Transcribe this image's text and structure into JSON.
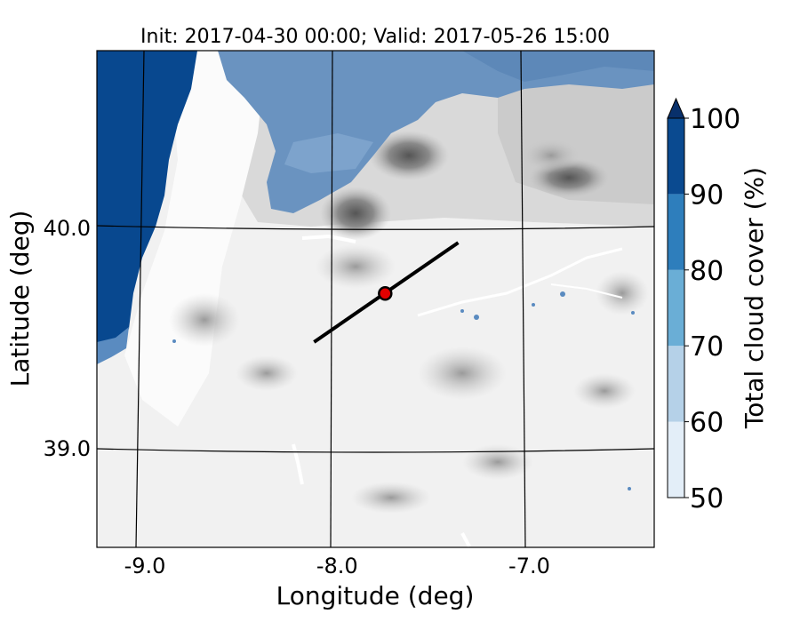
{
  "chart_data": {
    "type": "heatmap",
    "title": "Init: 2017-04-30 00:00; Valid: 2017-05-26 15:00",
    "xlabel": "Longitude (deg)",
    "ylabel": "Latitude (deg)",
    "xlim": [
      -9.25,
      -6.35
    ],
    "ylim": [
      38.55,
      40.8
    ],
    "x_ticks": [
      {
        "value": -9.0,
        "label": "-9.0"
      },
      {
        "value": -8.0,
        "label": "-8.0"
      },
      {
        "value": -7.0,
        "label": "-7.0"
      }
    ],
    "y_ticks": [
      {
        "value": 40.0,
        "label": "40.0"
      },
      {
        "value": 39.0,
        "label": "39.0"
      }
    ],
    "grid": true,
    "colorbar": {
      "label": "Total cloud cover (%)",
      "levels": [
        50,
        60,
        70,
        80,
        90,
        100
      ],
      "level_labels": [
        "50",
        "60",
        "70",
        "80",
        "90",
        "100"
      ],
      "colors": [
        "#e3eef8",
        "#b5d1e8",
        "#6aaed6",
        "#2e7ebc",
        "#0a4a90"
      ],
      "extend_color": "#08306b",
      "extend": "max"
    },
    "cross_section": {
      "start": [
        -8.12,
        39.48
      ],
      "end": [
        -7.37,
        39.93
      ]
    },
    "marker": {
      "lon": -7.75,
      "lat": 39.7,
      "color": "#e00000"
    }
  }
}
